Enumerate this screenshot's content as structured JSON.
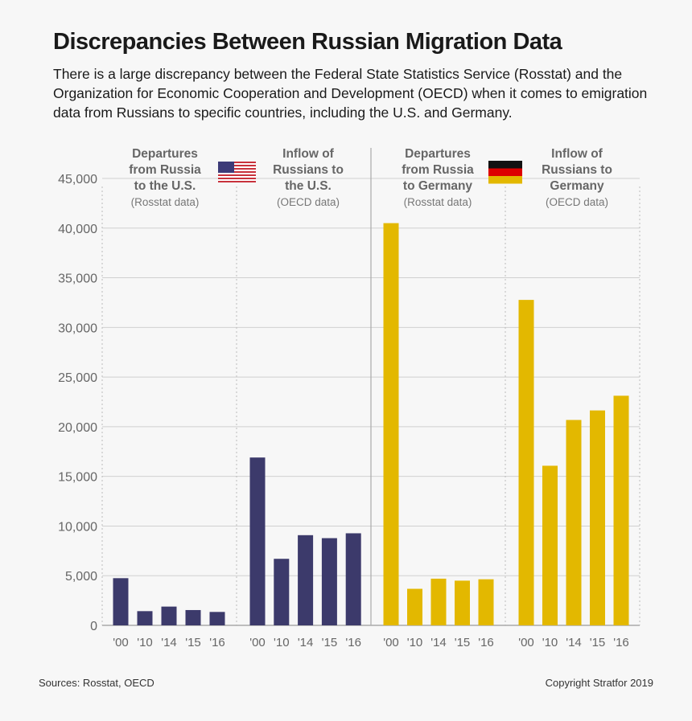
{
  "title": "Discrepancies Between Russian Migration Data",
  "subtitle": "There is a large discrepancy between the Federal State Statistics Service (Rosstat) and the Organization for Economic Cooperation and Development (OECD) when it comes to emigration data from Russians to specific countries, including the U.S. and Germany.",
  "footer": {
    "sources": "Sources: Rosstat, OECD",
    "copyright": "Copyright Stratfor 2019"
  },
  "chart_data": {
    "type": "bar",
    "ylim": [
      0,
      45000
    ],
    "yticks": [
      "0",
      "5,000",
      "10,000",
      "15,000",
      "20,000",
      "25,000",
      "30,000",
      "35,000",
      "40,000",
      "45,000"
    ],
    "grid": true,
    "categories": [
      "'00",
      "'10",
      "'14",
      "'15",
      "'16"
    ],
    "panels": [
      {
        "heading": "Departures from Russia to the U.S.",
        "heading_lines": [
          "Departures",
          "from Russia",
          "to the U.S."
        ],
        "source": "(Rosstat data)",
        "color": "#3c3a6b",
        "flag": "us-flag",
        "values": [
          4750,
          1430,
          1890,
          1540,
          1350
        ]
      },
      {
        "heading": "Inflow of Russians to the U.S.",
        "heading_lines": [
          "Inflow of",
          "Russians to",
          "the U.S."
        ],
        "source": "(OECD data)",
        "color": "#3c3a6b",
        "values": [
          16900,
          6700,
          9080,
          8780,
          9270
        ]
      },
      {
        "heading": "Departures from Russia to Germany",
        "heading_lines": [
          "Departures",
          "from Russia",
          "to Germany"
        ],
        "source": "(Rosstat data)",
        "color": "#e3b800",
        "flag": "germany-flag",
        "values": [
          40500,
          3680,
          4700,
          4500,
          4640
        ]
      },
      {
        "heading": "Inflow of Russians to Germany",
        "heading_lines": [
          "Inflow of",
          "Russians to",
          "Germany"
        ],
        "source": "(OECD data)",
        "color": "#e3b800",
        "values": [
          32770,
          16070,
          20680,
          21640,
          23120
        ]
      }
    ]
  }
}
